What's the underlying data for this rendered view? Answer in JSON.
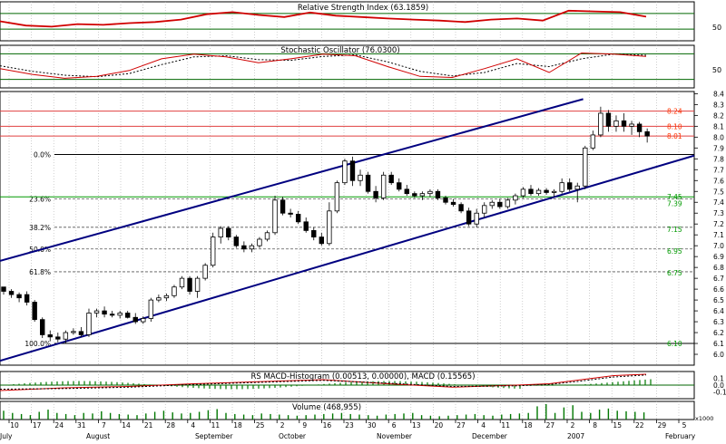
{
  "chart_data": [
    {
      "type": "line",
      "title": "Relative Strength Index (63.1859)",
      "axis_labels": [
        "50"
      ],
      "ylim": [
        0,
        100
      ],
      "grid": true,
      "reference_lines": [
        70,
        30
      ],
      "series": [
        {
          "name": "",
          "color": "#d00000",
          "x": [
            0,
            0.04,
            0.08,
            0.12,
            0.16,
            0.2,
            0.24,
            0.28,
            0.32,
            0.36,
            0.4,
            0.44,
            0.48,
            0.52,
            0.56,
            0.6,
            0.64,
            0.68,
            0.72,
            0.76,
            0.8,
            0.84,
            0.88,
            0.92,
            0.96,
            1.0
          ],
          "y": [
            50,
            38,
            35,
            42,
            40,
            45,
            48,
            55,
            70,
            76,
            68,
            62,
            75,
            66,
            62,
            58,
            55,
            52,
            48,
            55,
            58,
            52,
            80,
            78,
            76,
            63
          ]
        }
      ]
    },
    {
      "type": "line",
      "title": "Stochastic Oscillator (76.0300)",
      "axis_labels": [
        "50"
      ],
      "ylim": [
        0,
        100
      ],
      "grid": true,
      "reference_lines": [
        80,
        20
      ],
      "series": [
        {
          "name": "",
          "color": "#d00000",
          "x": [
            0,
            0.05,
            0.1,
            0.15,
            0.2,
            0.25,
            0.3,
            0.35,
            0.4,
            0.45,
            0.5,
            0.55,
            0.6,
            0.65,
            0.7,
            0.75,
            0.8,
            0.85,
            0.9,
            0.95,
            1.0
          ],
          "y": [
            45,
            30,
            20,
            25,
            40,
            70,
            82,
            75,
            60,
            70,
            82,
            78,
            50,
            25,
            22,
            45,
            70,
            35,
            85,
            82,
            76
          ]
        },
        {
          "name": "",
          "color": "#000000",
          "x": [
            0,
            0.05,
            0.1,
            0.15,
            0.2,
            0.25,
            0.3,
            0.35,
            0.4,
            0.45,
            0.5,
            0.55,
            0.6,
            0.65,
            0.7,
            0.75,
            0.8,
            0.85,
            0.9,
            0.95,
            1.0
          ],
          "y": [
            52,
            38,
            28,
            24,
            32,
            55,
            75,
            78,
            68,
            66,
            76,
            80,
            62,
            38,
            26,
            35,
            58,
            50,
            70,
            82,
            79
          ]
        }
      ]
    },
    {
      "type": "candlestick",
      "title": "",
      "ylim": [
        5.9,
        8.42
      ],
      "y_ticks": [
        "8.4",
        "8.3",
        "8.2",
        "8.1",
        "8.0",
        "7.9",
        "7.8",
        "7.7",
        "7.6",
        "7.5",
        "7.4",
        "7.3",
        "7.2",
        "7.1",
        "7.0",
        "6.9",
        "6.8",
        "6.7",
        "6.6",
        "6.5",
        "6.4",
        "6.3",
        "6.2",
        "6.1",
        "6.0"
      ],
      "x_ticks": [
        "10",
        "17",
        "24",
        "31",
        "7",
        "14",
        "21",
        "28",
        "4",
        "11",
        "18",
        "25",
        "2",
        "9",
        "16",
        "23",
        "30",
        "6",
        "13",
        "20",
        "27",
        "4",
        "11",
        "18",
        "27",
        "2",
        "8",
        "15",
        "22",
        "29",
        "5"
      ],
      "months": [
        "July",
        "August",
        "September",
        "October",
        "November",
        "December",
        "2007",
        "February"
      ],
      "fib_levels": [
        {
          "label": "0.0%",
          "value": 7.84
        },
        {
          "label": "23.6%",
          "value": 7.43
        },
        {
          "label": "38.2%",
          "value": 7.17
        },
        {
          "label": "50.0%",
          "value": 6.97
        },
        {
          "label": "61.8%",
          "value": 6.76
        },
        {
          "label": "100.0%",
          "value": 6.1
        }
      ],
      "price_labels": [
        {
          "label": "8.24",
          "value": 8.24,
          "color": "#ff3300"
        },
        {
          "label": "8.10",
          "value": 8.1,
          "color": "#ff3300"
        },
        {
          "label": "8.01",
          "value": 8.01,
          "color": "#ff3300"
        },
        {
          "label": "7.45",
          "value": 7.45,
          "color": "#009900"
        },
        {
          "label": "7.39",
          "value": 7.39,
          "color": "#009900"
        },
        {
          "label": "7.15",
          "value": 7.15,
          "color": "#009900"
        },
        {
          "label": "6.95",
          "value": 6.95,
          "color": "#009900"
        },
        {
          "label": "6.75",
          "value": 6.75,
          "color": "#009900"
        },
        {
          "label": "6.10",
          "value": 6.1,
          "color": "#009900"
        }
      ],
      "channel": {
        "upper": [
          [
            0,
            6.86
          ],
          [
            0.84,
            8.35
          ]
        ],
        "lower": [
          [
            0,
            5.94
          ],
          [
            1.0,
            7.83
          ]
        ],
        "color": "#000080"
      },
      "ohlc": [
        [
          0.0,
          6.62,
          6.62,
          6.55,
          6.58
        ],
        [
          0.012,
          6.58,
          6.6,
          6.52,
          6.55
        ],
        [
          0.024,
          6.55,
          6.57,
          6.48,
          6.52
        ],
        [
          0.036,
          6.55,
          6.58,
          6.45,
          6.48
        ],
        [
          0.048,
          6.48,
          6.5,
          6.3,
          6.32
        ],
        [
          0.06,
          6.32,
          6.34,
          6.15,
          6.18
        ],
        [
          0.072,
          6.18,
          6.22,
          6.12,
          6.16
        ],
        [
          0.084,
          6.16,
          6.2,
          6.11,
          6.14
        ],
        [
          0.096,
          6.14,
          6.22,
          6.1,
          6.2
        ],
        [
          0.108,
          6.2,
          6.24,
          6.18,
          6.21
        ],
        [
          0.12,
          6.21,
          6.25,
          6.16,
          6.18
        ],
        [
          0.132,
          6.18,
          6.42,
          6.16,
          6.38
        ],
        [
          0.144,
          6.38,
          6.42,
          6.34,
          6.4
        ],
        [
          0.156,
          6.4,
          6.44,
          6.34,
          6.37
        ],
        [
          0.168,
          6.37,
          6.4,
          6.34,
          6.36
        ],
        [
          0.18,
          6.36,
          6.4,
          6.33,
          6.38
        ],
        [
          0.192,
          6.38,
          6.4,
          6.33,
          6.34
        ],
        [
          0.204,
          6.34,
          6.38,
          6.28,
          6.3
        ],
        [
          0.216,
          6.3,
          6.35,
          6.28,
          6.33
        ],
        [
          0.228,
          6.33,
          6.52,
          6.3,
          6.5
        ],
        [
          0.24,
          6.5,
          6.55,
          6.48,
          6.52
        ],
        [
          0.252,
          6.52,
          6.56,
          6.49,
          6.54
        ],
        [
          0.264,
          6.54,
          6.64,
          6.52,
          6.62
        ],
        [
          0.276,
          6.62,
          6.72,
          6.6,
          6.7
        ],
        [
          0.288,
          6.7,
          6.72,
          6.55,
          6.58
        ],
        [
          0.3,
          6.58,
          6.72,
          6.52,
          6.7
        ],
        [
          0.312,
          6.7,
          6.84,
          6.68,
          6.82
        ],
        [
          0.324,
          6.82,
          7.12,
          6.8,
          7.08
        ],
        [
          0.336,
          7.08,
          7.18,
          7.02,
          7.16
        ],
        [
          0.348,
          7.16,
          7.18,
          7.05,
          7.08
        ],
        [
          0.36,
          7.08,
          7.1,
          6.98,
          7.0
        ],
        [
          0.372,
          7.0,
          7.04,
          6.94,
          6.97
        ],
        [
          0.384,
          6.97,
          7.02,
          6.94,
          7.0
        ],
        [
          0.396,
          7.0,
          7.08,
          6.98,
          7.06
        ],
        [
          0.408,
          7.06,
          7.14,
          7.04,
          7.12
        ],
        [
          0.42,
          7.12,
          7.46,
          7.1,
          7.42
        ],
        [
          0.432,
          7.42,
          7.45,
          7.28,
          7.3
        ],
        [
          0.444,
          7.3,
          7.34,
          7.26,
          7.29
        ],
        [
          0.456,
          7.29,
          7.32,
          7.2,
          7.22
        ],
        [
          0.468,
          7.22,
          7.26,
          7.12,
          7.14
        ],
        [
          0.48,
          7.14,
          7.17,
          7.05,
          7.08
        ],
        [
          0.492,
          7.08,
          7.12,
          7.0,
          7.02
        ],
        [
          0.504,
          7.02,
          7.4,
          7.0,
          7.32
        ],
        [
          0.516,
          7.32,
          7.6,
          7.3,
          7.58
        ],
        [
          0.528,
          7.58,
          7.8,
          7.56,
          7.78
        ],
        [
          0.54,
          7.78,
          7.82,
          7.55,
          7.6
        ],
        [
          0.552,
          7.6,
          7.7,
          7.55,
          7.65
        ],
        [
          0.564,
          7.65,
          7.68,
          7.48,
          7.5
        ],
        [
          0.576,
          7.5,
          7.55,
          7.4,
          7.44
        ],
        [
          0.588,
          7.44,
          7.68,
          7.42,
          7.65
        ],
        [
          0.6,
          7.65,
          7.68,
          7.56,
          7.58
        ],
        [
          0.612,
          7.58,
          7.62,
          7.5,
          7.52
        ],
        [
          0.624,
          7.52,
          7.56,
          7.46,
          7.48
        ],
        [
          0.636,
          7.48,
          7.5,
          7.44,
          7.46
        ],
        [
          0.648,
          7.46,
          7.5,
          7.42,
          7.48
        ],
        [
          0.66,
          7.48,
          7.52,
          7.45,
          7.5
        ],
        [
          0.672,
          7.5,
          7.52,
          7.42,
          7.44
        ],
        [
          0.684,
          7.44,
          7.46,
          7.38,
          7.4
        ],
        [
          0.696,
          7.4,
          7.43,
          7.36,
          7.38
        ],
        [
          0.708,
          7.38,
          7.4,
          7.3,
          7.32
        ],
        [
          0.72,
          7.32,
          7.35,
          7.18,
          7.2
        ],
        [
          0.732,
          7.2,
          7.34,
          7.17,
          7.3
        ],
        [
          0.744,
          7.3,
          7.4,
          7.26,
          7.37
        ],
        [
          0.756,
          7.37,
          7.42,
          7.34,
          7.4
        ],
        [
          0.768,
          7.4,
          7.43,
          7.34,
          7.36
        ],
        [
          0.78,
          7.36,
          7.44,
          7.34,
          7.42
        ],
        [
          0.792,
          7.42,
          7.48,
          7.38,
          7.46
        ],
        [
          0.804,
          7.46,
          7.54,
          7.44,
          7.52
        ],
        [
          0.816,
          7.52,
          7.56,
          7.46,
          7.48
        ],
        [
          0.828,
          7.48,
          7.53,
          7.46,
          7.51
        ],
        [
          0.84,
          7.51,
          7.53,
          7.47,
          7.49
        ],
        [
          0.852,
          7.49,
          7.52,
          7.45,
          7.5
        ],
        [
          0.864,
          7.5,
          7.62,
          7.48,
          7.58
        ],
        [
          0.876,
          7.58,
          7.62,
          7.5,
          7.52
        ],
        [
          0.888,
          7.52,
          7.58,
          7.4,
          7.55
        ],
        [
          0.9,
          7.55,
          7.92,
          7.52,
          7.9
        ],
        [
          0.912,
          7.9,
          8.06,
          7.88,
          8.02
        ],
        [
          0.924,
          8.02,
          8.28,
          8.0,
          8.22
        ],
        [
          0.936,
          8.22,
          8.25,
          8.05,
          8.1
        ],
        [
          0.948,
          8.1,
          8.2,
          8.05,
          8.15
        ],
        [
          0.96,
          8.15,
          8.22,
          8.05,
          8.1
        ],
        [
          0.972,
          8.1,
          8.15,
          8.02,
          8.12
        ],
        [
          0.984,
          8.12,
          8.14,
          8.0,
          8.05
        ],
        [
          0.996,
          8.05,
          8.08,
          7.95,
          8.01
        ]
      ]
    },
    {
      "type": "line",
      "title": "RS MACD-Histogram (0.00513, 0.00000), MACD (0.15565)",
      "axis_labels": [
        "0.1",
        "0.0",
        "-0.1"
      ],
      "ylim": [
        -0.2,
        0.2
      ],
      "grid": true,
      "series": [
        {
          "name": "",
          "color": "#d00000",
          "x": [
            0,
            0.1,
            0.2,
            0.3,
            0.4,
            0.5,
            0.6,
            0.7,
            0.8,
            0.85,
            0.9,
            0.95,
            1.0
          ],
          "y": [
            -0.08,
            -0.04,
            -0.02,
            0.02,
            0.05,
            0.08,
            0.02,
            -0.03,
            0.0,
            0.02,
            0.08,
            0.14,
            0.16
          ]
        },
        {
          "name": "",
          "color": "#000000",
          "x": [
            0,
            0.1,
            0.2,
            0.3,
            0.4,
            0.5,
            0.6,
            0.7,
            0.8,
            0.85,
            0.9,
            0.95,
            1.0
          ],
          "y": [
            -0.06,
            -0.05,
            -0.03,
            0.01,
            0.04,
            0.07,
            0.03,
            -0.02,
            -0.01,
            0.01,
            0.06,
            0.12,
            0.15
          ]
        }
      ]
    },
    {
      "type": "bar",
      "title": "Volume (468,955)",
      "axis_labels": [
        "x1000"
      ],
      "grid": true,
      "values": [
        80,
        60,
        50,
        40,
        70,
        90,
        60,
        50,
        40,
        60,
        55,
        75,
        60,
        50,
        45,
        40,
        55,
        70,
        80,
        65,
        55,
        60,
        70,
        85,
        95,
        60,
        50,
        45,
        40,
        55,
        50,
        45,
        40,
        35,
        40,
        45,
        50,
        55,
        60,
        50,
        45,
        40,
        35,
        45,
        50,
        55,
        60,
        40,
        35,
        30,
        35,
        40,
        45,
        50,
        40,
        35,
        45,
        50,
        55,
        60,
        120,
        140,
        60,
        110,
        130,
        70,
        60,
        90,
        100,
        80,
        75,
        70,
        65
      ]
    }
  ]
}
